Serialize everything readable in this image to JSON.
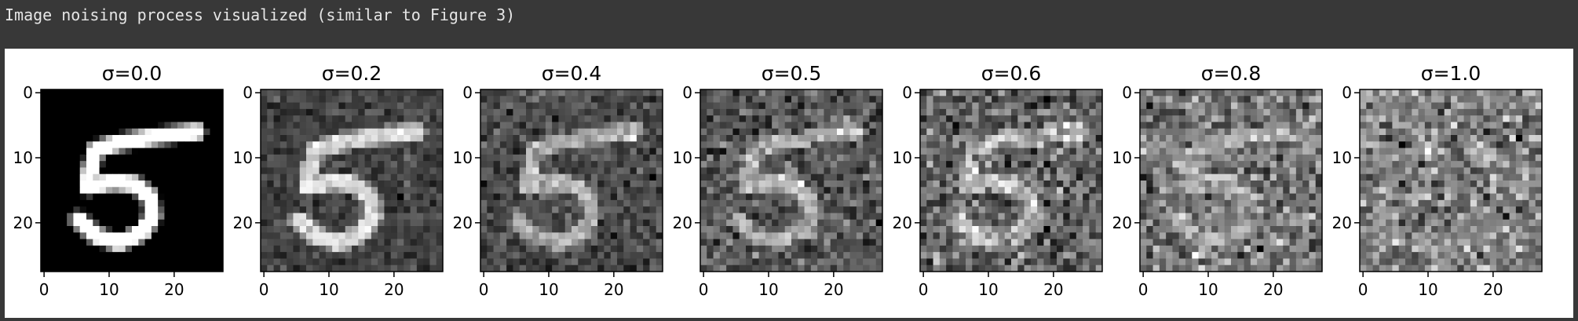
{
  "notebook_output": {
    "stdout_text": "Image noising process visualized (similar to Figure 3)"
  },
  "chart_data": {
    "type": "heatmap",
    "colormap": "gray",
    "image_size": [
      28,
      28
    ],
    "digit_shown": "5",
    "panels": [
      {
        "title": "σ=0.0",
        "sigma": 0.0
      },
      {
        "title": "σ=0.2",
        "sigma": 0.2
      },
      {
        "title": "σ=0.4",
        "sigma": 0.4
      },
      {
        "title": "σ=0.5",
        "sigma": 0.5
      },
      {
        "title": "σ=0.6",
        "sigma": 0.6
      },
      {
        "title": "σ=0.8",
        "sigma": 0.8
      },
      {
        "title": "σ=1.0",
        "sigma": 1.0
      }
    ],
    "x_ticks": [
      0,
      10,
      20
    ],
    "y_ticks": [
      0,
      10,
      20
    ],
    "x_tick_labels": [
      "0",
      "10",
      "20"
    ],
    "y_tick_labels": [
      "0",
      "10",
      "20"
    ],
    "xlim": [
      -0.5,
      27.5
    ],
    "ylim": [
      27.5,
      -0.5
    ],
    "grid": false
  }
}
